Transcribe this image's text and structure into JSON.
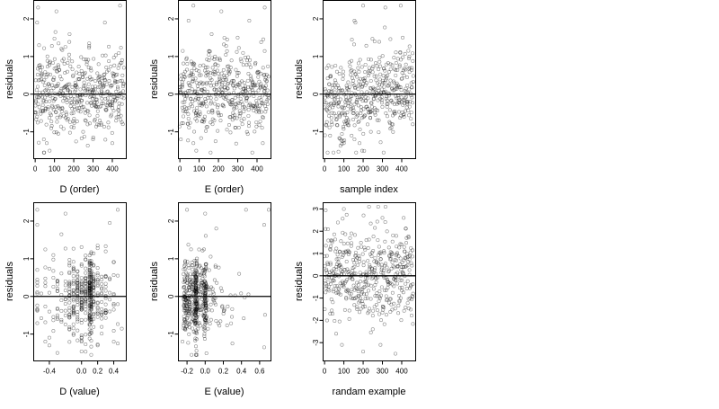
{
  "chart_data": [
    {
      "type": "scatter",
      "xlabel": "D (order)",
      "ylabel": "residuals",
      "xlim": [
        -10,
        470
      ],
      "ylim": [
        -1.7,
        2.5
      ],
      "xticks": [
        0,
        100,
        200,
        300,
        400
      ],
      "xtick_labels": [
        "0",
        "100",
        "200",
        "300",
        "400"
      ],
      "yticks": [
        -1,
        0,
        1,
        2
      ],
      "ytick_labels": [
        "-1",
        "0",
        "1",
        "2"
      ],
      "reference_line_y": 0,
      "seed": 11,
      "n_points": 460,
      "x_mode": "index",
      "x_range": [
        0,
        460
      ],
      "y_scale": 0.55,
      "y_range": [
        -1.55,
        2.35
      ],
      "x_values": [],
      "points": [
        [
          15,
          2.3
        ],
        [
          110,
          2.2
        ],
        [
          440,
          2.35
        ],
        [
          10,
          1.9
        ],
        [
          105,
          1.65
        ],
        [
          20,
          1.3
        ],
        [
          280,
          1.35
        ],
        [
          45,
          -1.2
        ],
        [
          60,
          -1.3
        ],
        [
          75,
          -1.5
        ],
        [
          400,
          -1.3
        ],
        [
          120,
          -1.05
        ],
        [
          300,
          -1.2
        ]
      ]
    },
    {
      "type": "scatter",
      "xlabel": "E (order)",
      "ylabel": "residuals",
      "xlim": [
        -10,
        470
      ],
      "ylim": [
        -1.7,
        2.5
      ],
      "xticks": [
        0,
        100,
        200,
        300,
        400
      ],
      "xtick_labels": [
        "0",
        "100",
        "200",
        "300",
        "400"
      ],
      "yticks": [
        -1,
        0,
        1,
        2
      ],
      "ytick_labels": [
        "-1",
        "0",
        "1",
        "2"
      ],
      "reference_line_y": 0,
      "seed": 23,
      "n_points": 460,
      "x_mode": "index",
      "x_range": [
        0,
        460
      ],
      "y_scale": 0.55,
      "y_range": [
        -1.55,
        2.35
      ],
      "x_values": [],
      "points": [
        [
          70,
          2.35
        ],
        [
          215,
          2.2
        ],
        [
          440,
          2.3
        ],
        [
          45,
          1.95
        ],
        [
          360,
          1.95
        ],
        [
          15,
          1.15
        ],
        [
          245,
          1.45
        ],
        [
          5,
          -1.2
        ],
        [
          70,
          -1.3
        ],
        [
          85,
          -1.5
        ],
        [
          430,
          -1.3
        ],
        [
          185,
          -1.25
        ]
      ]
    },
    {
      "type": "scatter",
      "xlabel": "sample index",
      "ylabel": "residuals",
      "xlim": [
        -10,
        470
      ],
      "ylim": [
        -1.7,
        2.5
      ],
      "xticks": [
        0,
        100,
        200,
        300,
        400
      ],
      "xtick_labels": [
        "0",
        "100",
        "200",
        "300",
        "400"
      ],
      "yticks": [
        -1,
        0,
        1,
        2
      ],
      "ytick_labels": [
        "-1",
        "0",
        "1",
        "2"
      ],
      "reference_line_y": 0,
      "seed": 37,
      "n_points": 460,
      "x_mode": "trend",
      "x_range": [
        0,
        460
      ],
      "y_scale": 0.55,
      "y_range": [
        -1.55,
        2.35
      ],
      "x_values": [],
      "points": [
        [
          200,
          2.35
        ],
        [
          315,
          2.3
        ],
        [
          395,
          2.35
        ],
        [
          155,
          1.95
        ],
        [
          160,
          1.9
        ],
        [
          405,
          1.5
        ],
        [
          260,
          1.4
        ],
        [
          95,
          -1.25
        ],
        [
          100,
          -1.3
        ],
        [
          140,
          -1.1
        ],
        [
          155,
          -1.2
        ],
        [
          195,
          -1.5
        ],
        [
          240,
          -1.0
        ]
      ]
    },
    {
      "type": "scatter",
      "xlabel": "D (value)",
      "ylabel": "residuals",
      "xlim": [
        -0.6,
        0.55
      ],
      "ylim": [
        -1.7,
        2.5
      ],
      "xticks": [
        -0.4,
        0.0,
        0.2,
        0.4
      ],
      "xtick_labels": [
        "-0.4",
        "0.0",
        "0.2",
        "0.4"
      ],
      "yticks": [
        -1,
        0,
        1,
        2
      ],
      "ytick_labels": [
        "-1",
        "0",
        "1",
        "2"
      ],
      "reference_line_y": 0,
      "seed": 53,
      "n_points": 460,
      "x_mode": "discrete",
      "x_range": [
        -0.55,
        0.5
      ],
      "y_scale": 0.55,
      "y_range": [
        -1.55,
        2.35
      ],
      "x_values": [
        -0.55,
        -0.5,
        -0.45,
        -0.4,
        -0.35,
        -0.3,
        -0.25,
        -0.2,
        -0.15,
        -0.1,
        -0.05,
        0.0,
        0.05,
        0.1,
        0.12,
        0.15,
        0.2,
        0.25,
        0.3,
        0.35,
        0.4,
        0.45,
        0.5
      ],
      "points": [
        [
          -0.55,
          2.3
        ],
        [
          -0.2,
          2.2
        ],
        [
          0.45,
          2.3
        ],
        [
          -0.55,
          1.9
        ],
        [
          -0.25,
          1.65
        ],
        [
          0.35,
          1.95
        ],
        [
          -0.45,
          -1.2
        ],
        [
          -0.4,
          -1.3
        ],
        [
          -0.3,
          -1.5
        ],
        [
          0.2,
          -1.3
        ],
        [
          0.45,
          -1.25
        ],
        [
          0.1,
          -1.0
        ],
        [
          0.1,
          -0.6
        ],
        [
          0.1,
          -0.4
        ],
        [
          0.1,
          0.7
        ],
        [
          0.12,
          0.5
        ],
        [
          0.12,
          -0.3
        ]
      ]
    },
    {
      "type": "scatter",
      "xlabel": "E (value)",
      "ylabel": "residuals",
      "xlim": [
        -0.3,
        0.72
      ],
      "ylim": [
        -1.7,
        2.5
      ],
      "xticks": [
        -0.2,
        0.0,
        0.2,
        0.4,
        0.6
      ],
      "xtick_labels": [
        "-0.2",
        "0.0",
        "0.2",
        "0.4",
        "0.6"
      ],
      "yticks": [
        -1,
        0,
        1,
        2
      ],
      "ytick_labels": [
        "-1",
        "0",
        "1",
        "2"
      ],
      "reference_line_y": 0,
      "seed": 71,
      "n_points": 460,
      "x_mode": "skewed",
      "x_range": [
        -0.28,
        0.7
      ],
      "y_scale": 0.55,
      "y_range": [
        -1.55,
        2.35
      ],
      "x_values": [],
      "points": [
        [
          -0.1,
          -0.9
        ],
        [
          -0.1,
          -0.7
        ],
        [
          -0.1,
          -0.5
        ],
        [
          -0.1,
          -0.3
        ],
        [
          -0.1,
          -0.1
        ],
        [
          -0.1,
          0.1
        ],
        [
          -0.1,
          0.3
        ],
        [
          -0.1,
          0.5
        ],
        [
          -0.12,
          0.6
        ],
        [
          -0.12,
          -0.4
        ],
        [
          0.0,
          -0.5
        ],
        [
          0.0,
          -0.3
        ],
        [
          0.0,
          0.2
        ],
        [
          0.0,
          0.4
        ],
        [
          0.02,
          -0.1
        ],
        [
          -0.2,
          2.3
        ],
        [
          0.0,
          2.2
        ],
        [
          0.45,
          2.3
        ],
        [
          0.7,
          2.3
        ],
        [
          0.65,
          1.9
        ],
        [
          -0.25,
          -1.2
        ],
        [
          -0.15,
          -1.55
        ],
        [
          0.65,
          -1.35
        ],
        [
          0.3,
          -1.25
        ]
      ]
    },
    {
      "type": "scatter",
      "xlabel": "randam example",
      "ylabel": "residuals",
      "xlim": [
        -10,
        470
      ],
      "ylim": [
        -3.8,
        3.3
      ],
      "xticks": [
        0,
        100,
        200,
        300,
        400
      ],
      "xtick_labels": [
        "0",
        "100",
        "200",
        "300",
        "400"
      ],
      "yticks": [
        -3,
        -2,
        -1,
        0,
        1,
        2,
        3
      ],
      "ytick_labels": [
        "-3",
        "-2",
        "-1",
        "0",
        "1",
        "2",
        "3"
      ],
      "reference_line_y": 0,
      "seed": 97,
      "n_points": 460,
      "x_mode": "index",
      "x_range": [
        0,
        460
      ],
      "y_scale": 1.0,
      "y_range": [
        -3.5,
        3.1
      ],
      "x_values": [],
      "points": [
        [
          100,
          3.0
        ],
        [
          300,
          2.6
        ],
        [
          5,
          2.1
        ],
        [
          410,
          2.6
        ],
        [
          90,
          -3.1
        ],
        [
          200,
          -3.4
        ],
        [
          290,
          -3.1
        ],
        [
          60,
          -2.6
        ],
        [
          250,
          -2.4
        ]
      ]
    }
  ]
}
